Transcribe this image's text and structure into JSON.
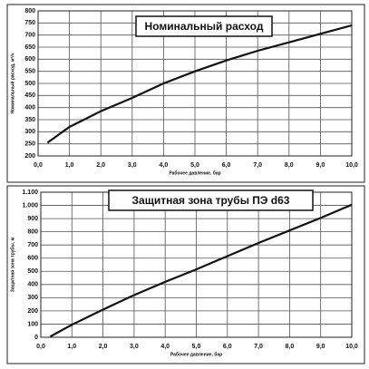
{
  "chart_data": [
    {
      "type": "line",
      "title": "Номинальный расход",
      "y_label": "Номинальный расход, м³/ч",
      "x_label": "Рабочее давление, бар",
      "x": [
        0.3,
        1.0,
        2.0,
        3.0,
        4.0,
        5.0,
        6.0,
        7.0,
        8.0,
        9.0,
        10.0
      ],
      "series": [
        {
          "name": "Номинальный расход",
          "color": "#111111",
          "values": [
            255,
            320,
            385,
            440,
            500,
            550,
            595,
            635,
            670,
            705,
            740
          ]
        }
      ],
      "xlim": [
        0,
        10
      ],
      "xticks": [
        {
          "value": 0,
          "label": "0,0"
        },
        {
          "value": 1,
          "label": "1,0"
        },
        {
          "value": 2,
          "label": "2,0"
        },
        {
          "value": 3,
          "label": "3,0"
        },
        {
          "value": 4,
          "label": "4,0"
        },
        {
          "value": 5,
          "label": "5,0"
        },
        {
          "value": 6,
          "label": "6,0"
        },
        {
          "value": 7,
          "label": "7,0"
        },
        {
          "value": 8,
          "label": "8,0"
        },
        {
          "value": 9,
          "label": "9,0"
        },
        {
          "value": 10,
          "label": "10,0"
        }
      ],
      "ylim": [
        200,
        800
      ],
      "yticks": [
        200,
        250,
        300,
        350,
        400,
        450,
        500,
        550,
        600,
        650,
        700,
        750,
        800
      ],
      "grid": true
    },
    {
      "type": "line",
      "title": "Защитная зона трубы ПЭ d63",
      "y_label": "Защитная зона трубы, м",
      "x_label": "Рабочее давление, бар",
      "x": [
        0.3,
        1.0,
        2.0,
        3.0,
        4.0,
        5.0,
        6.0,
        7.0,
        8.0,
        9.0,
        10.0
      ],
      "series": [
        {
          "name": "Защитная зона трубы",
          "color": "#111111",
          "values": [
            5,
            95,
            210,
            320,
            420,
            515,
            615,
            715,
            810,
            905,
            1005
          ]
        }
      ],
      "xlim": [
        0,
        10
      ],
      "xticks": [
        {
          "value": 0,
          "label": "0,0"
        },
        {
          "value": 1,
          "label": "1,0"
        },
        {
          "value": 2,
          "label": "2,0"
        },
        {
          "value": 3,
          "label": "3,0"
        },
        {
          "value": 4,
          "label": "4,0"
        },
        {
          "value": 5,
          "label": "5,0"
        },
        {
          "value": 6,
          "label": "6,0"
        },
        {
          "value": 7,
          "label": "7,0"
        },
        {
          "value": 8,
          "label": "8,0"
        },
        {
          "value": 9,
          "label": "9,0"
        },
        {
          "value": 10,
          "label": "10,0"
        }
      ],
      "ylim": [
        0,
        1100
      ],
      "yticks": [
        0,
        100,
        200,
        300,
        400,
        500,
        600,
        700,
        800,
        900,
        {
          "value": 1000,
          "label": "1.000"
        },
        {
          "value": 1100,
          "label": "1.100"
        }
      ],
      "grid": true
    }
  ]
}
